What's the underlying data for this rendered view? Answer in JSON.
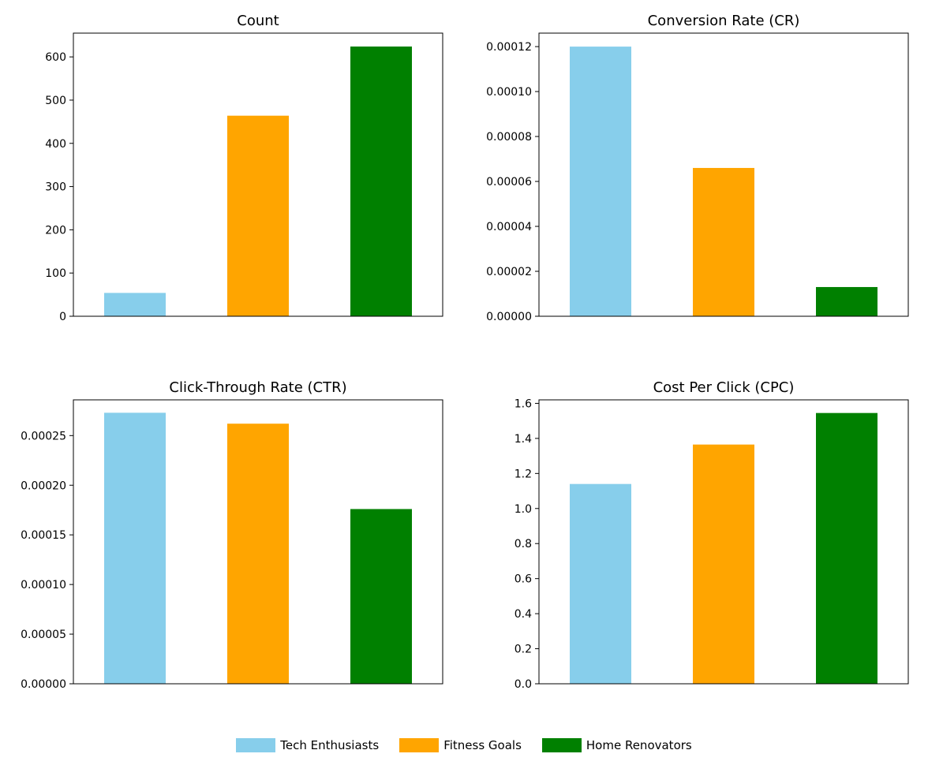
{
  "chart_data": [
    {
      "type": "bar",
      "title": "Count",
      "categories": [
        "Tech Enthusiasts",
        "Fitness Goals",
        "Home Renovators"
      ],
      "values": [
        54,
        464,
        624
      ],
      "ylim": [
        0,
        655
      ],
      "yticks": [
        0,
        100,
        200,
        300,
        400,
        500,
        600
      ],
      "ytick_labels": [
        "0",
        "100",
        "200",
        "300",
        "400",
        "500",
        "600"
      ],
      "xlabel": "",
      "ylabel": "",
      "grid": false
    },
    {
      "type": "bar",
      "title": "Conversion Rate (CR)",
      "categories": [
        "Tech Enthusiasts",
        "Fitness Goals",
        "Home Renovators"
      ],
      "values": [
        0.00012,
        6.6e-05,
        1.3e-05
      ],
      "ylim": [
        0,
        0.000126
      ],
      "yticks": [
        0,
        2e-05,
        4e-05,
        6e-05,
        8e-05,
        0.0001,
        0.00012
      ],
      "ytick_labels": [
        "0.00000",
        "0.00002",
        "0.00004",
        "0.00006",
        "0.00008",
        "0.00010",
        "0.00012"
      ],
      "xlabel": "",
      "ylabel": "",
      "grid": false
    },
    {
      "type": "bar",
      "title": "Click-Through Rate (CTR)",
      "categories": [
        "Tech Enthusiasts",
        "Fitness Goals",
        "Home Renovators"
      ],
      "values": [
        0.000273,
        0.000262,
        0.000176
      ],
      "ylim": [
        0,
        0.000286
      ],
      "yticks": [
        0,
        5e-05,
        0.0001,
        0.00015,
        0.0002,
        0.00025
      ],
      "ytick_labels": [
        "0.00000",
        "0.00005",
        "0.00010",
        "0.00015",
        "0.00020",
        "0.00025"
      ],
      "xlabel": "",
      "ylabel": "",
      "grid": false
    },
    {
      "type": "bar",
      "title": "Cost Per Click (CPC)",
      "categories": [
        "Tech Enthusiasts",
        "Fitness Goals",
        "Home Renovators"
      ],
      "values": [
        1.14,
        1.365,
        1.545
      ],
      "ylim": [
        0,
        1.62
      ],
      "yticks": [
        0,
        0.2,
        0.4,
        0.6,
        0.8,
        1.0,
        1.2,
        1.4,
        1.6
      ],
      "ytick_labels": [
        "0.0",
        "0.2",
        "0.4",
        "0.6",
        "0.8",
        "1.0",
        "1.2",
        "1.4",
        "1.6"
      ],
      "xlabel": "",
      "ylabel": "",
      "grid": false
    }
  ],
  "legend": {
    "placement": "bottom-center",
    "items": [
      {
        "label": "Tech Enthusiasts",
        "color": "#87CEEB"
      },
      {
        "label": "Fitness Goals",
        "color": "#FFA500"
      },
      {
        "label": "Home Renovators",
        "color": "#008000"
      }
    ]
  },
  "colors": [
    "#87CEEB",
    "#FFA500",
    "#008000"
  ]
}
